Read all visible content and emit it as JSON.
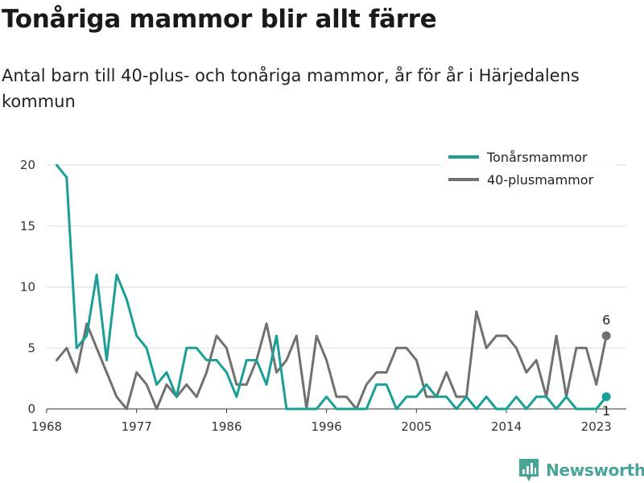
{
  "title": "Tonåriga mammor blir allt färre",
  "subtitle": "Antal barn till 40-plus- och tonåriga mammor, år för år i Härjedalens kommun",
  "brand": "Newsworthy",
  "chart_data": {
    "type": "line",
    "x": [
      1969,
      1970,
      1971,
      1972,
      1973,
      1974,
      1975,
      1976,
      1977,
      1978,
      1979,
      1980,
      1981,
      1982,
      1983,
      1984,
      1985,
      1986,
      1987,
      1988,
      1989,
      1990,
      1991,
      1992,
      1993,
      1994,
      1995,
      1996,
      1997,
      1998,
      1999,
      2000,
      2001,
      2002,
      2003,
      2004,
      2005,
      2006,
      2007,
      2008,
      2009,
      2010,
      2011,
      2012,
      2013,
      2014,
      2015,
      2016,
      2017,
      2018,
      2019,
      2020,
      2021,
      2022,
      2023,
      2024
    ],
    "x_ticks": [
      1968,
      1977,
      1986,
      1996,
      2005,
      2014,
      2023
    ],
    "y_ticks": [
      0,
      5,
      10,
      15,
      20
    ],
    "ylim": [
      0,
      21
    ],
    "grid": true,
    "legend": "top-right",
    "series": [
      {
        "name": "Tonårsmammor",
        "color": "#1a9e96",
        "values": [
          20,
          19,
          5,
          6,
          11,
          4,
          11,
          9,
          6,
          5,
          2,
          3,
          1,
          5,
          5,
          4,
          4,
          3,
          1,
          4,
          4,
          2,
          6,
          0,
          0,
          0,
          0,
          1,
          0,
          0,
          0,
          0,
          2,
          2,
          0,
          1,
          1,
          2,
          1,
          1,
          0,
          1,
          0,
          1,
          0,
          0,
          1,
          0,
          1,
          1,
          0,
          1,
          0,
          0,
          0,
          1
        ],
        "end_label": "1"
      },
      {
        "name": "40-plusmammor",
        "color": "#707070",
        "values": [
          4,
          5,
          3,
          7,
          5,
          3,
          1,
          0,
          3,
          2,
          0,
          2,
          1,
          2,
          1,
          3,
          6,
          5,
          2,
          2,
          4,
          7,
          3,
          4,
          6,
          0,
          6,
          4,
          1,
          1,
          0,
          2,
          3,
          3,
          5,
          5,
          4,
          1,
          1,
          3,
          1,
          1,
          8,
          5,
          6,
          6,
          5,
          3,
          4,
          1,
          6,
          1,
          5,
          5,
          2,
          6
        ],
        "end_label": "6"
      }
    ]
  }
}
